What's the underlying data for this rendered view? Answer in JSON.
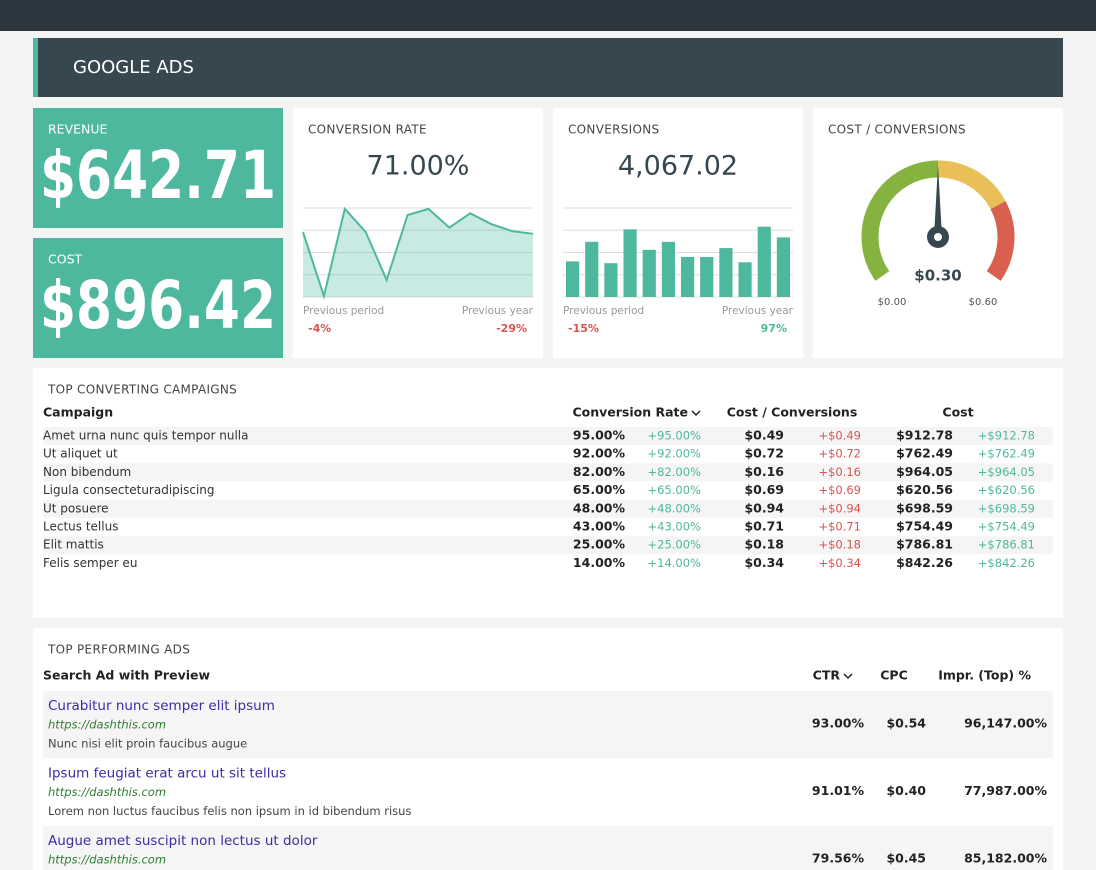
{
  "header": {
    "title": "GOOGLE ADS"
  },
  "kpis": [
    {
      "label": "REVENUE",
      "value": "$642.71"
    },
    {
      "label": "COST",
      "value": "$896.42"
    }
  ],
  "widgets": [
    {
      "title": "CONVERSION RATE",
      "value": "71.00%",
      "chart": {
        "type": "area",
        "color": "#4db89e",
        "ylim": [
          0,
          100
        ],
        "yticks": [
          0,
          25,
          50,
          75,
          100
        ],
        "values": [
          73,
          1,
          99,
          73,
          19,
          92,
          99,
          78,
          94,
          82,
          74,
          71
        ]
      },
      "previous_period": {
        "label": "Previous period",
        "value": "-4%",
        "color": "#d9534f"
      },
      "previous_year": {
        "label": "Previous year",
        "value": "-29%",
        "color": "#d9534f"
      }
    },
    {
      "title": "CONVERSIONS",
      "value": "4,067.02",
      "chart": {
        "type": "bar",
        "color": "#4db89e",
        "ylim": [
          0,
          100
        ],
        "yticks": [
          0,
          25,
          50,
          75,
          100
        ],
        "values": [
          40,
          62,
          38,
          76,
          53,
          62,
          45,
          45,
          55,
          39,
          79,
          67
        ]
      },
      "previous_period": {
        "label": "Previous period",
        "value": "-15%",
        "color": "#d9534f"
      },
      "previous_year": {
        "label": "Previous year",
        "value": "97%",
        "color": "#4db89e"
      }
    }
  ],
  "gauge": {
    "title": "COST / CONVERSIONS",
    "value": 0.3,
    "value_label": "$0.30",
    "min": {
      "value": 0,
      "label": "$0.00"
    },
    "max": {
      "value": 0.6,
      "label": "$0.60"
    }
  },
  "campaigns": {
    "title": "TOP CONVERTING CAMPAIGNS",
    "columns": [
      "Campaign",
      "Conversion Rate",
      "Cost / Conversions",
      "Cost"
    ],
    "rows": [
      [
        "Amet urna nunc quis tempor nulla",
        "95.00%",
        "+95.00%",
        "$0.49",
        "+$0.49",
        "$912.78",
        "+$912.78"
      ],
      [
        "Ut aliquet ut",
        "92.00%",
        "+92.00%",
        "$0.72",
        "+$0.72",
        "$762.49",
        "+$762.49"
      ],
      [
        "Non bibendum",
        "82.00%",
        "+82.00%",
        "$0.16",
        "+$0.16",
        "$964.05",
        "+$964.05"
      ],
      [
        "Ligula consecteturadipiscing",
        "65.00%",
        "+65.00%",
        "$0.69",
        "+$0.69",
        "$620.56",
        "+$620.56"
      ],
      [
        "Ut posuere",
        "48.00%",
        "+48.00%",
        "$0.94",
        "+$0.94",
        "$698.59",
        "+$698.59"
      ],
      [
        "Lectus tellus",
        "43.00%",
        "+43.00%",
        "$0.71",
        "+$0.71",
        "$754.49",
        "+$754.49"
      ],
      [
        "Elit mattis",
        "25.00%",
        "+25.00%",
        "$0.18",
        "+$0.18",
        "$786.81",
        "+$786.81"
      ],
      [
        "Felis semper eu",
        "14.00%",
        "+14.00%",
        "$0.34",
        "+$0.34",
        "$842.26",
        "+$842.26"
      ]
    ]
  },
  "ads": {
    "title": "TOP PERFORMING ADS",
    "columns": [
      "Search Ad with Preview",
      "CTR",
      "CPC",
      "Impr. (Top) %"
    ],
    "rows": [
      {
        "title": "Curabitur nunc semper elit ipsum",
        "url": "https://dashthis.com",
        "description": "Nunc nisi elit proin faucibus augue",
        "ctr": "93.00%",
        "cpc": "$0.54",
        "impr": "96,147.00%"
      },
      {
        "title": "Ipsum feugiat erat arcu ut sit tellus",
        "url": "https://dashthis.com",
        "description": "Lorem non luctus faucibus felis non ipsum in id bibendum risus",
        "ctr": "91.01%",
        "cpc": "$0.40",
        "impr": "77,987.00%"
      },
      {
        "title": "Augue amet suscipit non lectus ut dolor",
        "url": "https://dashthis.com",
        "ctr": "79.56%",
        "cpc": "$0.45",
        "impr": "85,182.00%"
      }
    ]
  }
}
